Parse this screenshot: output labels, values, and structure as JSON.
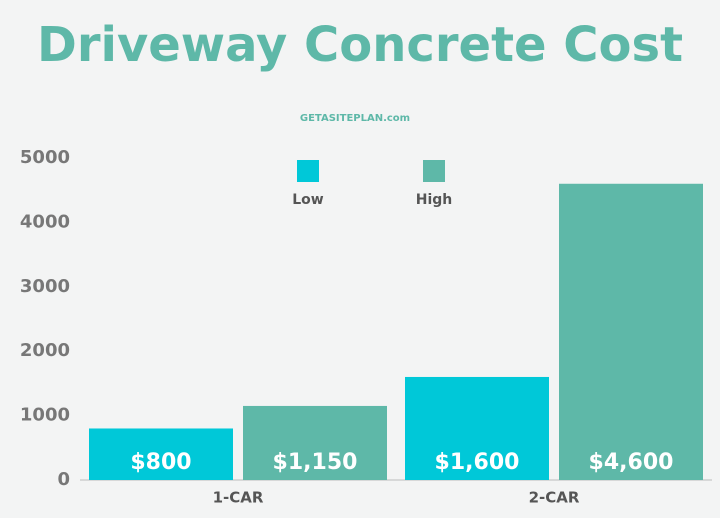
{
  "chart_data": {
    "type": "bar",
    "title": "Driveway Concrete Cost",
    "subtitle": "GETASITEPLAN.com",
    "categories": [
      "1-CAR",
      "2-CAR"
    ],
    "series": [
      {
        "name": "Low",
        "color": "#00c8d8",
        "values": [
          800,
          1600
        ],
        "value_labels": [
          "$800",
          "$1,600"
        ]
      },
      {
        "name": "High",
        "color": "#5eb8a8",
        "values": [
          1150,
          4600
        ],
        "value_labels": [
          "$1,150",
          "$4,600"
        ]
      }
    ],
    "ylim": [
      0,
      5000
    ],
    "yticks": [
      0,
      1000,
      2000,
      3000,
      4000,
      5000
    ],
    "grid": false,
    "legend": "top"
  }
}
